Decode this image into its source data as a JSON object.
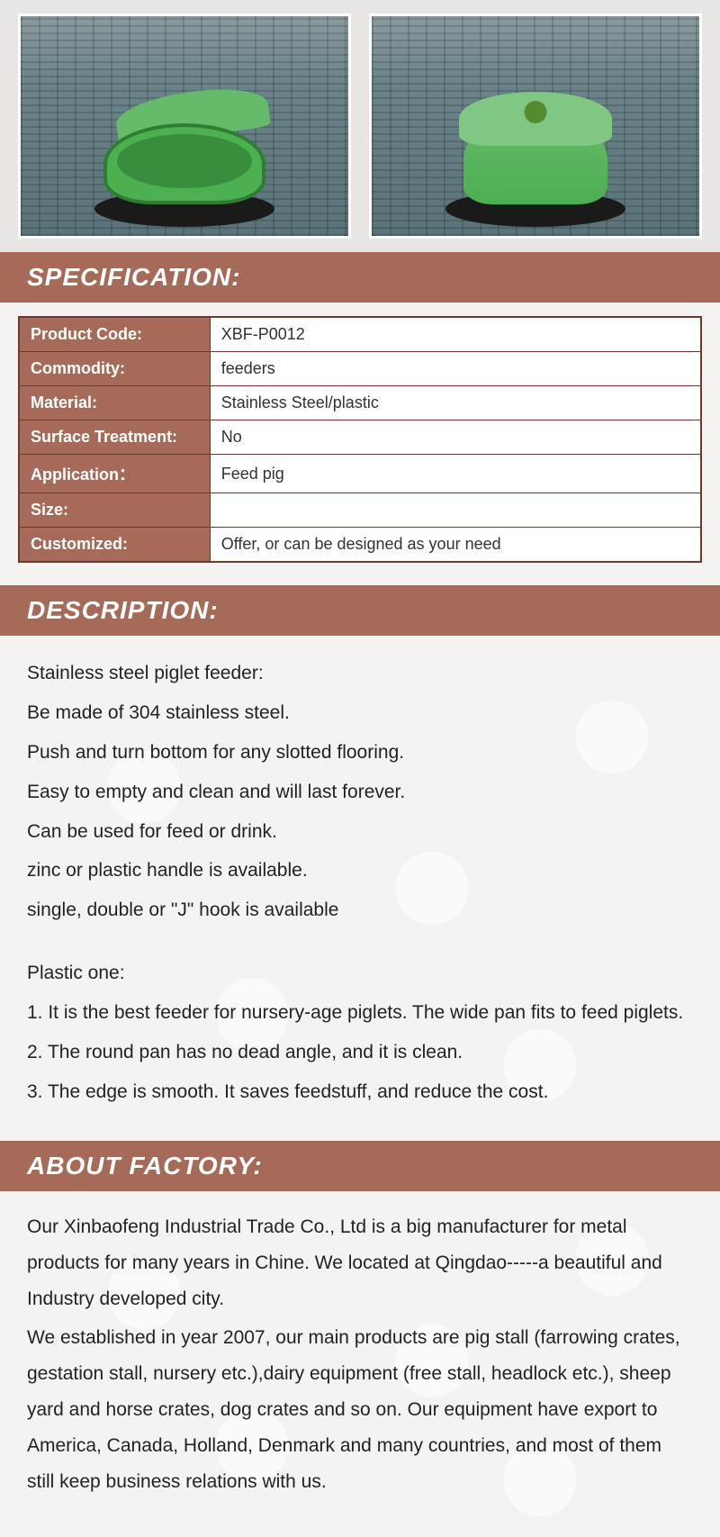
{
  "colors": {
    "header_bg": "#a56b58",
    "header_text": "#ffffff",
    "table_border": "#6b3a2c",
    "body_bg": "#f5f3f2",
    "text": "#222222"
  },
  "images": {
    "left_alt": "Green pig feeder with lid open on slatted floor",
    "right_alt": "Green pig feeder with lid closed on slatted floor"
  },
  "sections": {
    "spec_title": "SPECIFICATION:",
    "desc_title": "DESCRIPTION:",
    "about_title": "ABOUT FACTORY:"
  },
  "spec": {
    "rows": [
      {
        "label": "Product Code:",
        "value": "XBF-P0012"
      },
      {
        "label": "Commodity:",
        "value": "feeders"
      },
      {
        "label": "Material:",
        "value": "Stainless Steel/plastic"
      },
      {
        "label": "Surface Treatment:",
        "value": "No"
      },
      {
        "label": "Application：",
        "value": "Feed pig"
      },
      {
        "label": "Size:",
        "value": ""
      },
      {
        "label": "Customized:",
        "value": "Offer, or can be designed as your need"
      }
    ]
  },
  "description": {
    "lines": [
      "Stainless steel piglet feeder:",
      "Be made of 304 stainless steel.",
      "Push and turn bottom for any slotted flooring.",
      "Easy to empty and clean and will last forever.",
      "Can be used for feed or drink.",
      "zinc or plastic handle is available.",
      "single, double or \"J\" hook is available"
    ],
    "plastic_head": "Plastic one:",
    "plastic_lines": [
      "1. It is the best feeder for nursery-age piglets. The wide pan fits to feed piglets.",
      "2. The round pan has no dead angle, and it is clean.",
      "3. The edge is smooth. It saves feedstuff, and reduce the cost."
    ]
  },
  "about": {
    "p1": "Our Xinbaofeng Industrial Trade Co., Ltd is a big manufacturer for metal products for many years in Chine. We located at Qingdao-----a beautiful and Industry developed city.",
    "p2": "We established in year 2007, our main products are pig stall (farrowing crates, gestation stall, nursery etc.),dairy equipment (free stall, headlock etc.), sheep yard and horse crates, dog crates and so on. Our equipment have export to America, Canada, Holland, Denmark and many countries, and most of them still keep business relations with us."
  }
}
